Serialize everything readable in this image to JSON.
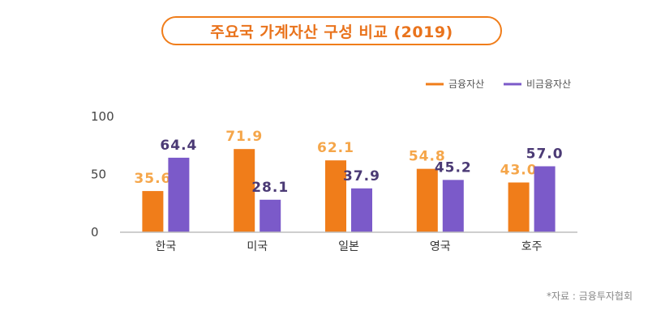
{
  "chart_data": {
    "type": "bar",
    "title": "주요국 가계자산 구성 비교 (2019)",
    "categories": [
      "한국",
      "미국",
      "일본",
      "영국",
      "호주"
    ],
    "series": [
      {
        "name": "금융자산",
        "color": "#f07d1a",
        "values": [
          35.6,
          71.9,
          62.1,
          54.8,
          43.0
        ],
        "labels": [
          "35.6",
          "71.9",
          "62.1",
          "54.8",
          "43.0"
        ]
      },
      {
        "name": "비금융자산",
        "color": "#7b5ac9",
        "values": [
          64.4,
          28.1,
          37.9,
          45.2,
          57.0
        ],
        "labels": [
          "64.4",
          "28.1",
          "37.9",
          "45.2",
          "57.0"
        ]
      }
    ],
    "yticks": [
      "100",
      "50",
      "0"
    ],
    "ytick_values": [
      100,
      50,
      0
    ],
    "ylim": [
      0,
      100
    ],
    "grid": false,
    "legend_position": "top-right",
    "value_label_colors": {
      "금융자산": "#f5a64a",
      "비금융자산": "#4b3a75"
    }
  },
  "source_note": "*자료 : 금융투자협회"
}
